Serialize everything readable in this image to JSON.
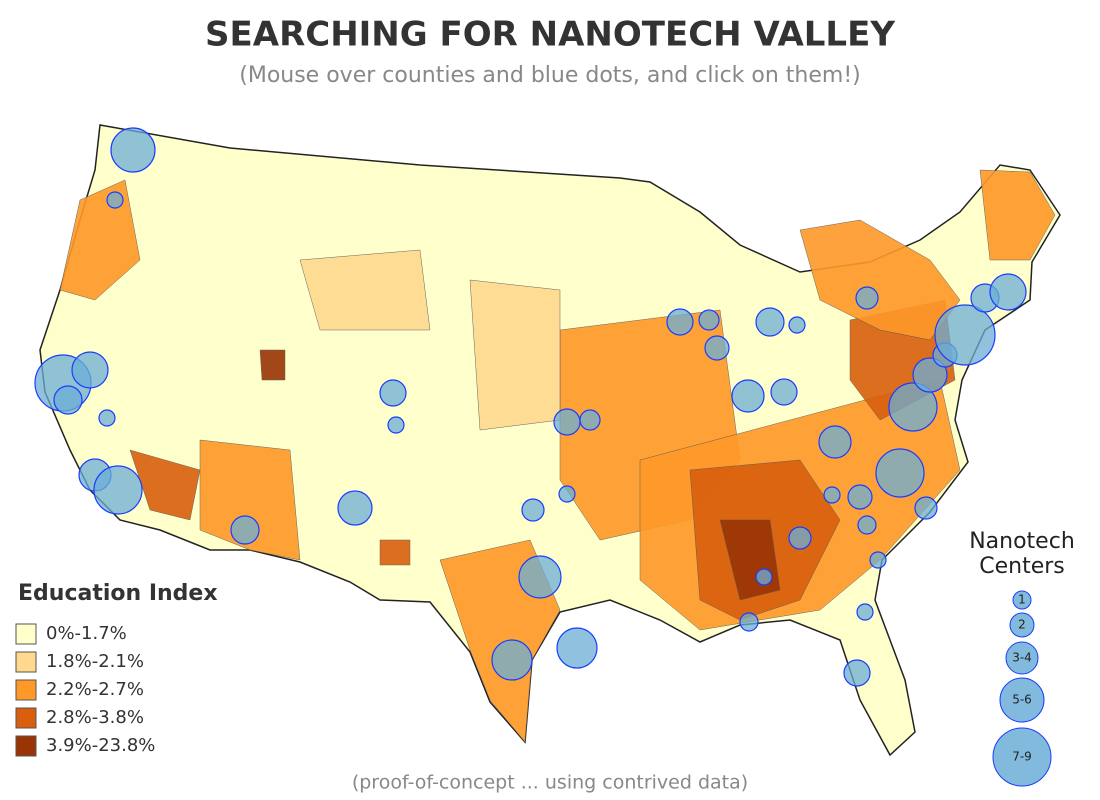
{
  "header": {
    "title": "SEARCHING FOR NANOTECH VALLEY",
    "subtitle": "(Mouse over counties and blue dots, and click on them!)"
  },
  "legend": {
    "title": "Education Index",
    "items": [
      {
        "label": "0%-1.7%",
        "color": "#ffffcc"
      },
      {
        "label": "1.8%-2.1%",
        "color": "#fed98e"
      },
      {
        "label": "2.2%-2.7%",
        "color": "#fe9929"
      },
      {
        "label": "2.8%-3.8%",
        "color": "#d95f0e"
      },
      {
        "label": "3.9%-23.8%",
        "color": "#993404"
      }
    ]
  },
  "size_legend": {
    "title_lines": [
      "Nanotech",
      "Centers"
    ],
    "items": [
      "1",
      "2",
      "3-4",
      "5-6",
      "7-9"
    ],
    "color": "#6baed6"
  },
  "footnote": "(proof-of-concept ... using contrived data)"
}
